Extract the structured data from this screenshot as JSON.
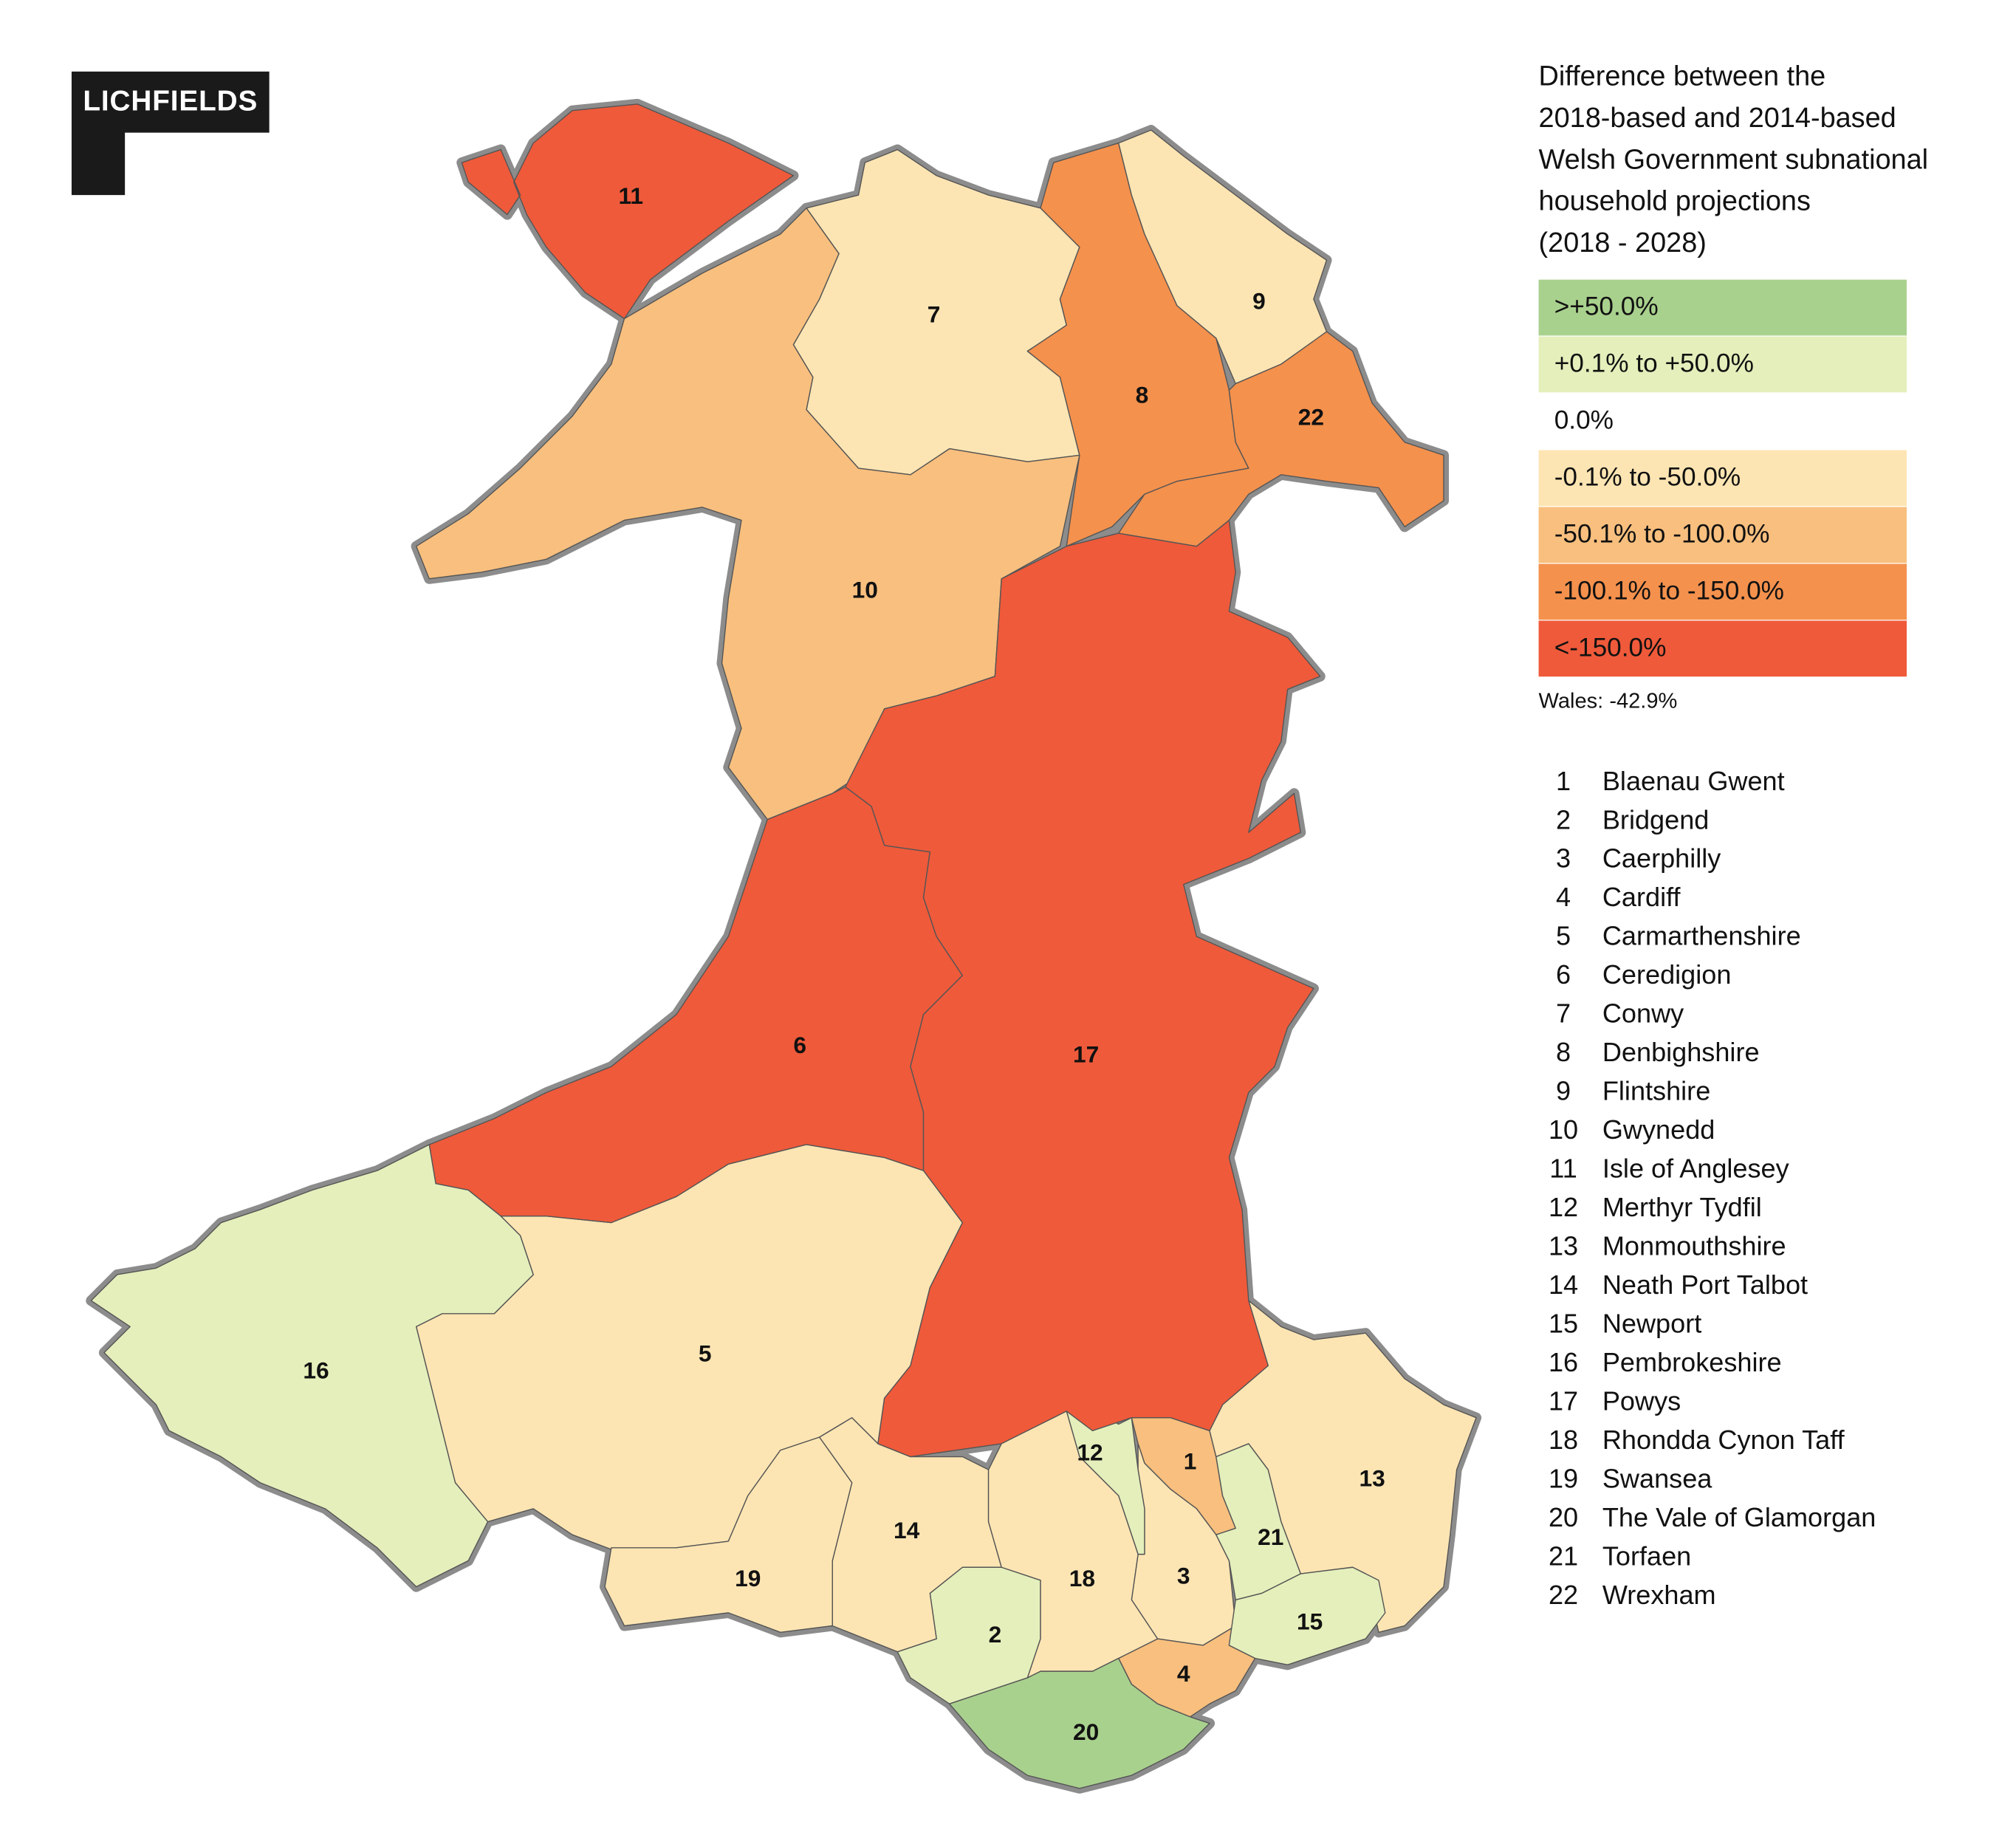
{
  "logo": "LICHFIELDS",
  "legend": {
    "title_lines": [
      "Difference between the",
      "2018-based and 2014-based",
      "Welsh Government subnational",
      "household projections",
      "(2018 - 2028)"
    ],
    "classes": [
      {
        "label": ">+50.0%",
        "color": "#a9d18e"
      },
      {
        "label": "+0.1% to +50.0%",
        "color": "#e4efbb"
      },
      {
        "label": "0.0%",
        "color": "#ffffff"
      },
      {
        "label": "-0.1% to -50.0%",
        "color": "#fde5b3"
      },
      {
        "label": "-50.1% to -100.0%",
        "color": "#f8bf7e"
      },
      {
        "label": "-100.1% to -150.0%",
        "color": "#f4914d"
      },
      {
        "label": "<-150.0%",
        "color": "#ef5a3a"
      }
    ],
    "note": "Wales: -42.9%"
  },
  "areas": [
    {
      "number": 1,
      "name": "Blaenau Gwent",
      "color": "#f8bf7e"
    },
    {
      "number": 2,
      "name": "Bridgend",
      "color": "#e4efbb"
    },
    {
      "number": 3,
      "name": "Caerphilly",
      "color": "#fde5b3"
    },
    {
      "number": 4,
      "name": "Cardiff",
      "color": "#f8bf7e"
    },
    {
      "number": 5,
      "name": "Carmarthenshire",
      "color": "#fde5b3"
    },
    {
      "number": 6,
      "name": "Ceredigion",
      "color": "#ef5a3a"
    },
    {
      "number": 7,
      "name": "Conwy",
      "color": "#fde5b3"
    },
    {
      "number": 8,
      "name": "Denbighshire",
      "color": "#f4914d"
    },
    {
      "number": 9,
      "name": "Flintshire",
      "color": "#fde5b3"
    },
    {
      "number": 10,
      "name": "Gwynedd",
      "color": "#f8bf7e"
    },
    {
      "number": 11,
      "name": "Isle of Anglesey",
      "color": "#ef5a3a"
    },
    {
      "number": 12,
      "name": "Merthyr Tydfil",
      "color": "#e4efbb"
    },
    {
      "number": 13,
      "name": "Monmouthshire",
      "color": "#fde5b3"
    },
    {
      "number": 14,
      "name": "Neath Port Talbot",
      "color": "#fde5b3"
    },
    {
      "number": 15,
      "name": "Newport",
      "color": "#e4efbb"
    },
    {
      "number": 16,
      "name": "Pembrokeshire",
      "color": "#e4efbb"
    },
    {
      "number": 17,
      "name": "Powys",
      "color": "#ef5a3a"
    },
    {
      "number": 18,
      "name": "Rhondda Cynon Taff",
      "color": "#fde5b3"
    },
    {
      "number": 19,
      "name": "Swansea",
      "color": "#fde5b3"
    },
    {
      "number": 20,
      "name": "The Vale of Glamorgan",
      "color": "#a9d18e"
    },
    {
      "number": 21,
      "name": "Torfaen",
      "color": "#e4efbb"
    },
    {
      "number": 22,
      "name": "Wrexham",
      "color": "#f4914d"
    }
  ]
}
